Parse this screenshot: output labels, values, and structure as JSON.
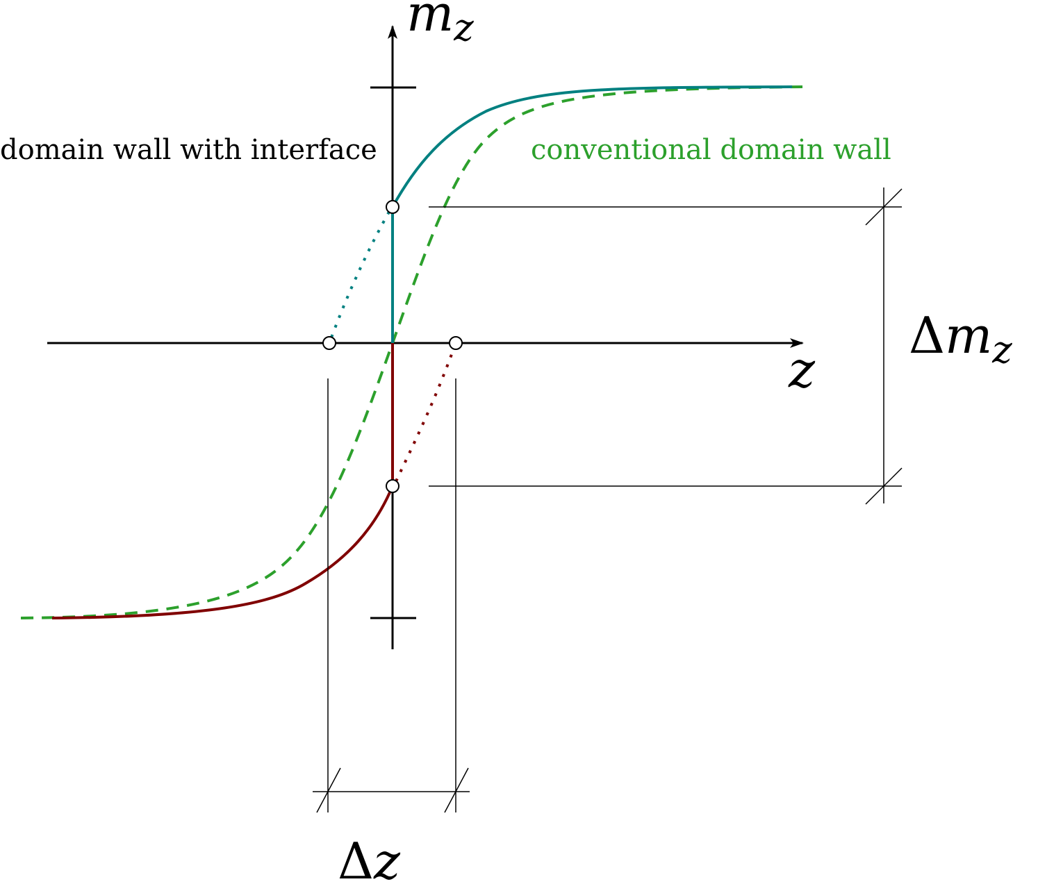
{
  "labels": {
    "interface_wall": "domain wall with interface",
    "conventional_wall": "conventional domain wall",
    "y_axis": "m",
    "y_axis_sub": "z",
    "x_axis": "z",
    "delta_m_symbol": "Δ",
    "delta_m_var": "m",
    "delta_m_sub": "z",
    "delta_z_symbol": "Δ",
    "delta_z_var": "z"
  },
  "colors": {
    "axes": "#000000",
    "interface_upper": "#008080",
    "interface_lower": "#800000",
    "conventional": "#2ca02c",
    "label_interface": "#000000",
    "label_conventional": "#2ca02c"
  }
}
